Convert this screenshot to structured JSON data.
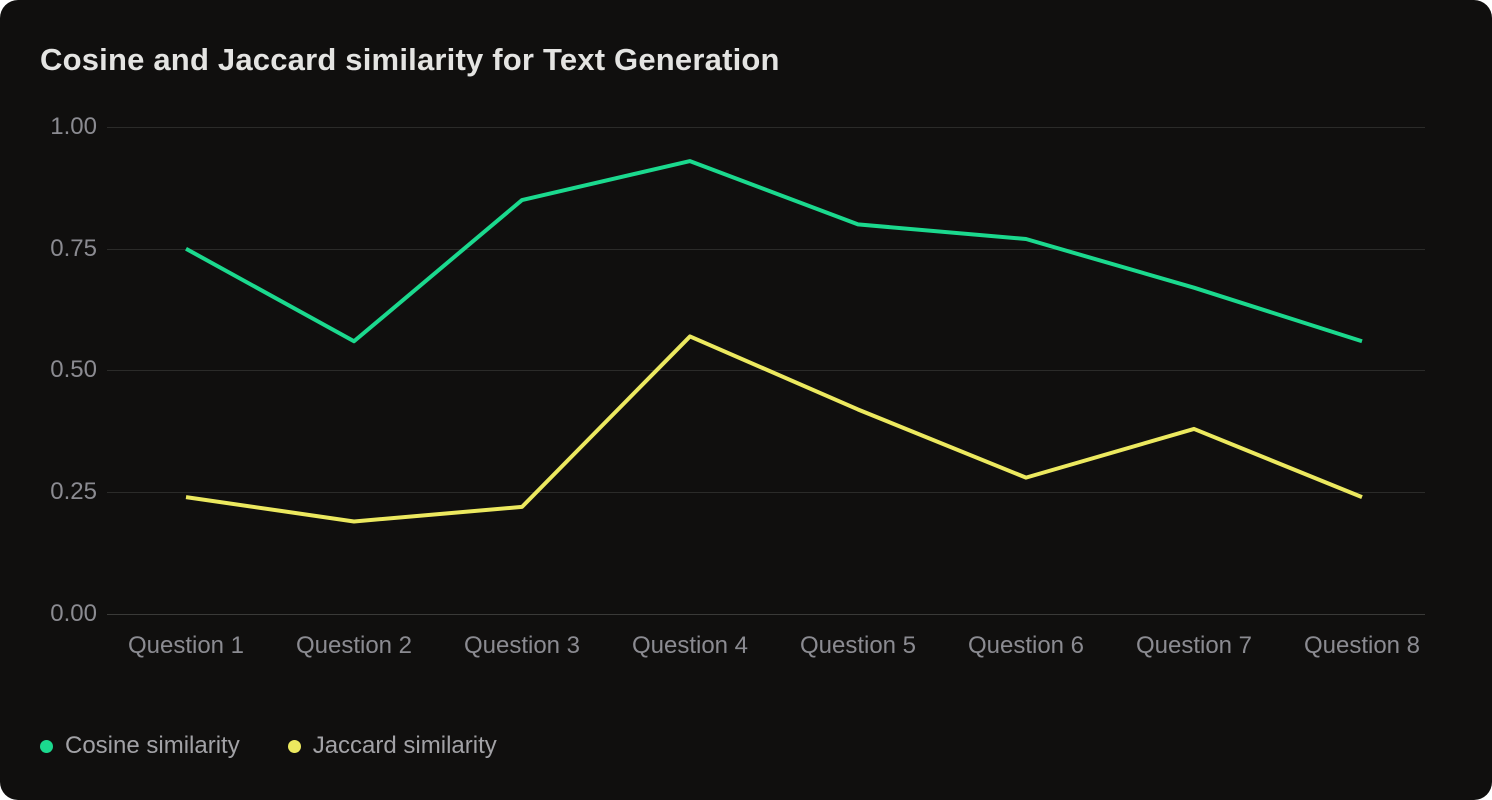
{
  "chart_data": {
    "type": "line",
    "title": "Cosine and Jaccard similarity for Text Generation",
    "categories": [
      "Question 1",
      "Question 2",
      "Question 3",
      "Question 4",
      "Question 5",
      "Question 6",
      "Question 7",
      "Question 8"
    ],
    "series": [
      {
        "name": "Cosine similarity",
        "color": "#1bd98e",
        "values": [
          0.75,
          0.56,
          0.85,
          0.93,
          0.8,
          0.77,
          0.67,
          0.56
        ]
      },
      {
        "name": "Jaccard similarity",
        "color": "#ece95f",
        "values": [
          0.24,
          0.19,
          0.22,
          0.57,
          0.42,
          0.28,
          0.38,
          0.24
        ]
      }
    ],
    "xlabel": "",
    "ylabel": "",
    "ylim": [
      0.0,
      1.0
    ],
    "y_tick_labels": [
      "1.00",
      "0.75",
      "0.50",
      "0.25",
      "0.00"
    ],
    "grid": true,
    "legend_position": "bottom-left",
    "background_color": "#100f0e",
    "text_color": "#8b8b91",
    "title_color": "#e4e4e2"
  }
}
